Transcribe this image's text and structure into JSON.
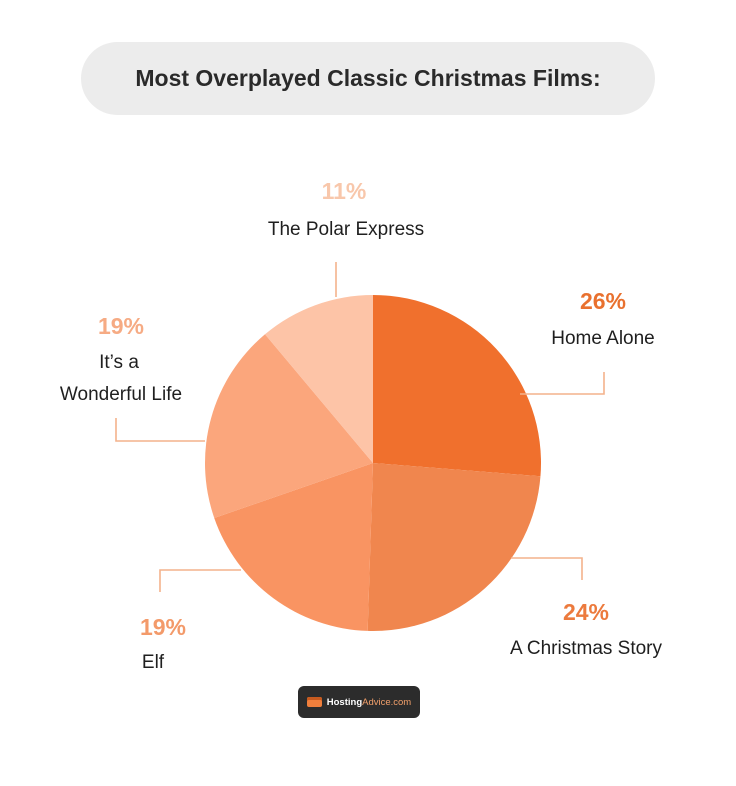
{
  "header": {
    "title": "Most Overplayed Classic Christmas Films:"
  },
  "chart_data": {
    "type": "pie",
    "title": "Most Overplayed Classic Christmas Films:",
    "slices": [
      {
        "label": "Home Alone",
        "value": 26,
        "display": "26%",
        "color": "#f0702d",
        "pct_color": "#e9712f"
      },
      {
        "label": "A Christmas Story",
        "value": 24,
        "display": "24%",
        "color": "#f0864e",
        "pct_color": "#ec7a3d"
      },
      {
        "label": "Elf",
        "value": 19,
        "display": "19%",
        "color": "#f99462",
        "pct_color": "#f39a6a"
      },
      {
        "label": "It’s a Wonderful Life",
        "label_lines": [
          "It’s a",
          "Wonderful Life"
        ],
        "value": 19,
        "display": "19%",
        "color": "#fba67c",
        "pct_color": "#f6ab84"
      },
      {
        "label": "The Polar Express",
        "value": 11,
        "display": "11%",
        "color": "#fdc4a7",
        "pct_color": "#f8c7ab"
      }
    ],
    "leader_color": "#f3b28c"
  },
  "logo": {
    "text_bold": "Hosting",
    "text_accent": "Advice.com"
  }
}
